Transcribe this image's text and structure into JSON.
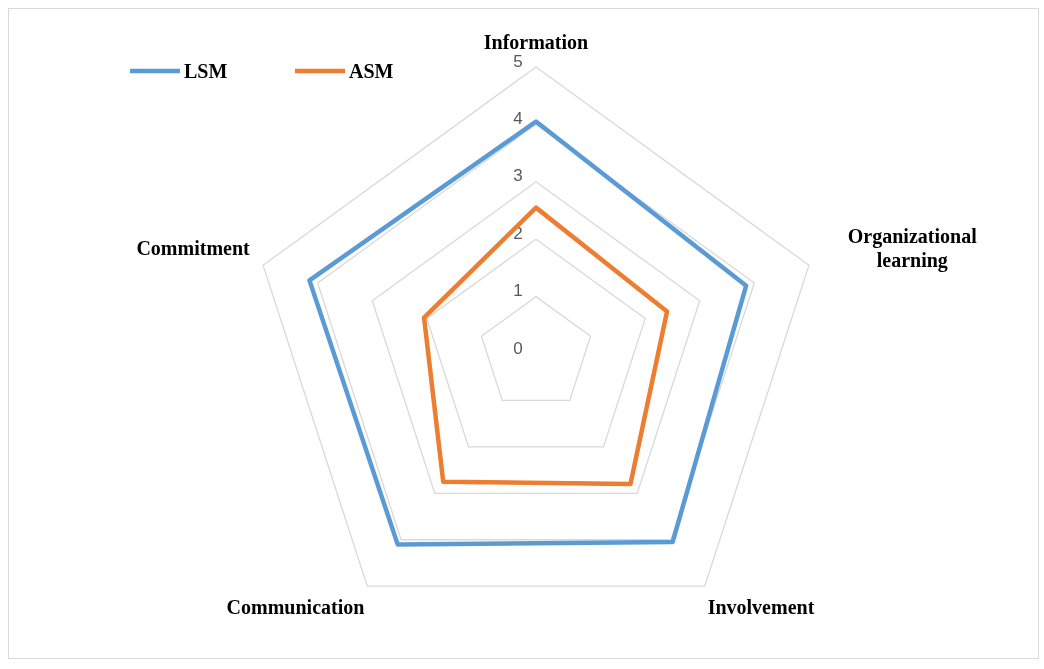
{
  "chart_data": {
    "type": "radar",
    "categories": [
      "Information",
      "Organizational learning",
      "Involvement",
      "Communication",
      "Commitment"
    ],
    "series": [
      {
        "name": "LSM",
        "color": "#5b9bd5",
        "values": [
          4.05,
          3.85,
          4.05,
          4.1,
          4.15
        ]
      },
      {
        "name": "ASM",
        "color": "#ed7d31",
        "values": [
          2.55,
          2.4,
          2.8,
          2.75,
          2.05
        ]
      }
    ],
    "ylim": [
      0,
      5
    ],
    "yticks": [
      0,
      1,
      2,
      3,
      4,
      5
    ],
    "grid": true,
    "legend": "top left",
    "marker": "none"
  }
}
